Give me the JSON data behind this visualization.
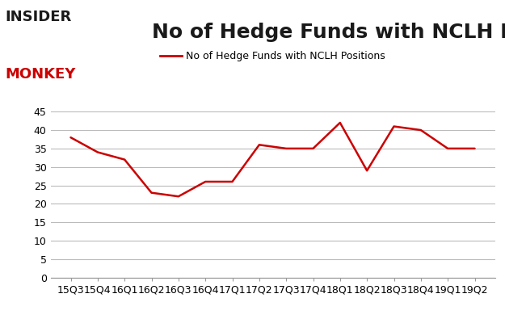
{
  "x_labels": [
    "15Q3",
    "15Q4",
    "16Q1",
    "16Q2",
    "16Q3",
    "16Q4",
    "17Q1",
    "17Q2",
    "17Q3",
    "17Q4",
    "18Q1",
    "18Q2",
    "18Q3",
    "18Q4",
    "19Q1",
    "19Q2"
  ],
  "y_values": [
    38,
    34,
    32,
    23,
    22,
    26,
    26,
    36,
    35,
    35,
    42,
    29,
    41,
    40,
    35,
    35
  ],
  "line_color": "#cc0000",
  "title": "No of Hedge Funds with NCLH Positions",
  "legend_label": "No of Hedge Funds with NCLH Positions",
  "ylim": [
    0,
    45
  ],
  "yticks": [
    0,
    5,
    10,
    15,
    20,
    25,
    30,
    35,
    40,
    45
  ],
  "title_fontsize": 18,
  "legend_fontsize": 9,
  "tick_fontsize": 9,
  "background_color": "#ffffff",
  "grid_color": "#bbbbbb",
  "logo_text_insider": "INSIDER",
  "logo_text_monkey": "MONKEY"
}
